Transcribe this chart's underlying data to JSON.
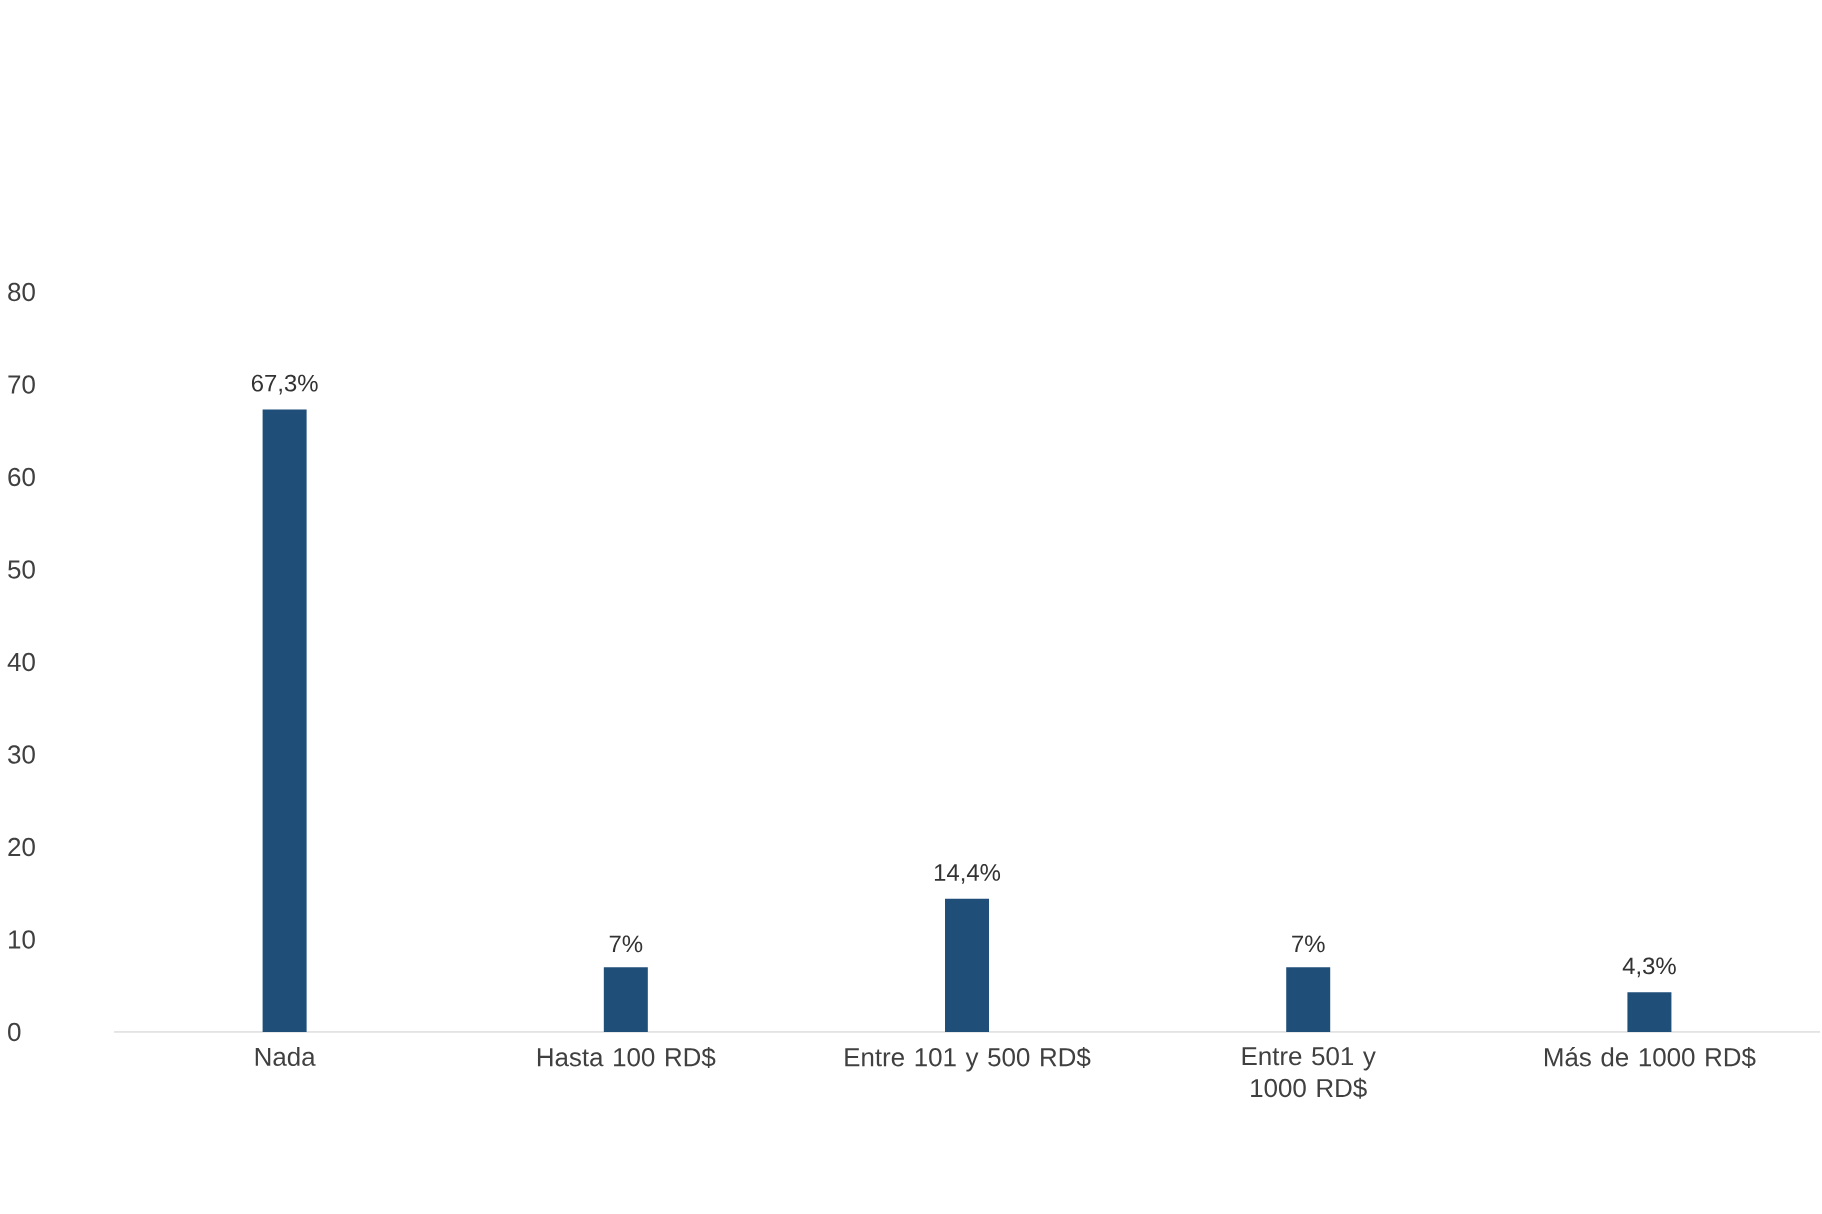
{
  "chart_data": {
    "type": "bar",
    "categories": [
      "Nada",
      "Hasta 100 RD$",
      "Entre 101 y 500 RD$",
      "Entre 501 y 1000 RD$",
      "Más de 1000 RD$"
    ],
    "values": [
      67.3,
      7,
      14.4,
      7,
      4.3
    ],
    "value_labels": [
      "67,3%",
      "7%",
      "14,4%",
      "7%",
      "4,3%"
    ],
    "color": "#1f4e79",
    "ylim": [
      0,
      80
    ],
    "yticks": [
      0,
      10,
      20,
      30,
      40,
      50,
      60,
      70,
      80
    ]
  }
}
